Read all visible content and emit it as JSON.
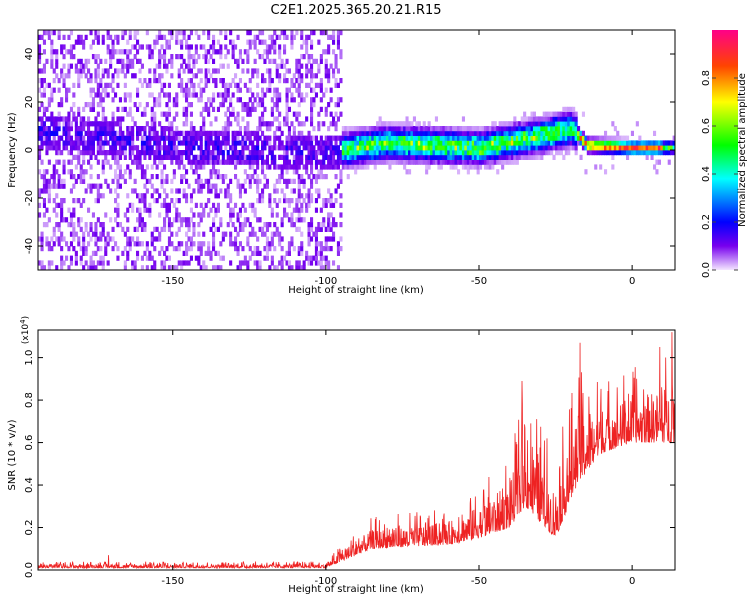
{
  "title": "C2E1.2025.365.20.21.R15",
  "chart_data": [
    {
      "type": "heatmap",
      "name": "spectrogram",
      "title": "C2E1.2025.365.20.21.R15",
      "xlabel": "Height of straight line (km)",
      "ylabel": "Frequency (Hz)",
      "xlim": [
        -194,
        14
      ],
      "ylim": [
        -50,
        50
      ],
      "xticks": [
        -150,
        -100,
        -50,
        0
      ],
      "xtick_labels": [
        "-150",
        "-100",
        "-50",
        "0"
      ],
      "yticks": [
        -40,
        -20,
        0,
        20,
        40
      ],
      "ytick_labels": [
        "-40",
        "-20",
        "0",
        "20",
        "40"
      ],
      "colorbar": {
        "label": "Normalized spectral amplitude",
        "range": [
          0,
          1
        ],
        "ticks": [
          0.0,
          0.2,
          0.4,
          0.6,
          0.8
        ],
        "tick_labels": [
          "0.0",
          "0.2",
          "0.4",
          "0.6",
          "0.8"
        ],
        "colormap": [
          "#f4e6ff",
          "#5500dd",
          "#0000ff",
          "#00ffff",
          "#00ff00",
          "#ffff00",
          "#ff8800",
          "#ff0000",
          "#ff0088"
        ]
      },
      "signal_band": {
        "description": "Energy concentrated near 0 Hz; broadband noise below -95 km",
        "noise_region_x": [
          -194,
          -95
        ],
        "center_frequency_hz": [
          {
            "x": -194,
            "f": 7
          },
          {
            "x": -160,
            "f": 2
          },
          {
            "x": -140,
            "f": 0
          },
          {
            "x": -100,
            "f": -2
          },
          {
            "x": -80,
            "f": 2
          },
          {
            "x": -50,
            "f": 0
          },
          {
            "x": -30,
            "f": 5
          },
          {
            "x": -20,
            "f": 8
          },
          {
            "x": -15,
            "f": 1
          },
          {
            "x": 0,
            "f": 0
          },
          {
            "x": 14,
            "f": 0
          }
        ],
        "peak_amplitude": 0.95
      }
    },
    {
      "type": "line",
      "name": "snr",
      "xlabel": "Height of straight line (km)",
      "ylabel": "SNR (10 * v/v)",
      "y_multiplier": "(x10",
      "y_multiplier_exp": "4",
      "y_multiplier_close": ")",
      "xlim": [
        -194,
        14
      ],
      "ylim": [
        0,
        1.13
      ],
      "xticks": [
        -150,
        -100,
        -50,
        0
      ],
      "xtick_labels": [
        "-150",
        "-100",
        "-50",
        "0"
      ],
      "yticks": [
        0.0,
        0.2,
        0.4,
        0.6,
        0.8,
        1.0
      ],
      "ytick_labels": [
        "0.0",
        "0.2",
        "0.4",
        "0.6",
        "0.8",
        "1.0"
      ],
      "line_color": "#ee2222",
      "envelope": [
        {
          "x": -194,
          "base": 0.01,
          "amp": 0.03
        },
        {
          "x": -100,
          "base": 0.01,
          "amp": 0.03
        },
        {
          "x": -95,
          "base": 0.04,
          "amp": 0.08
        },
        {
          "x": -85,
          "base": 0.1,
          "amp": 0.15
        },
        {
          "x": -60,
          "base": 0.12,
          "amp": 0.18
        },
        {
          "x": -50,
          "base": 0.15,
          "amp": 0.25
        },
        {
          "x": -40,
          "base": 0.2,
          "amp": 0.35
        },
        {
          "x": -35,
          "base": 0.3,
          "amp": 0.55
        },
        {
          "x": -25,
          "base": 0.15,
          "amp": 0.4
        },
        {
          "x": -18,
          "base": 0.4,
          "amp": 0.55
        },
        {
          "x": -10,
          "base": 0.55,
          "amp": 0.35
        },
        {
          "x": 0,
          "base": 0.6,
          "amp": 0.35
        },
        {
          "x": 14,
          "base": 0.6,
          "amp": 0.45
        }
      ],
      "peaks": [
        {
          "x": -171,
          "y": 0.07
        },
        {
          "x": -36,
          "y": 0.89
        },
        {
          "x": -17,
          "y": 1.07
        },
        {
          "x": 9,
          "y": 1.05
        },
        {
          "x": 13,
          "y": 1.12
        }
      ]
    }
  ]
}
